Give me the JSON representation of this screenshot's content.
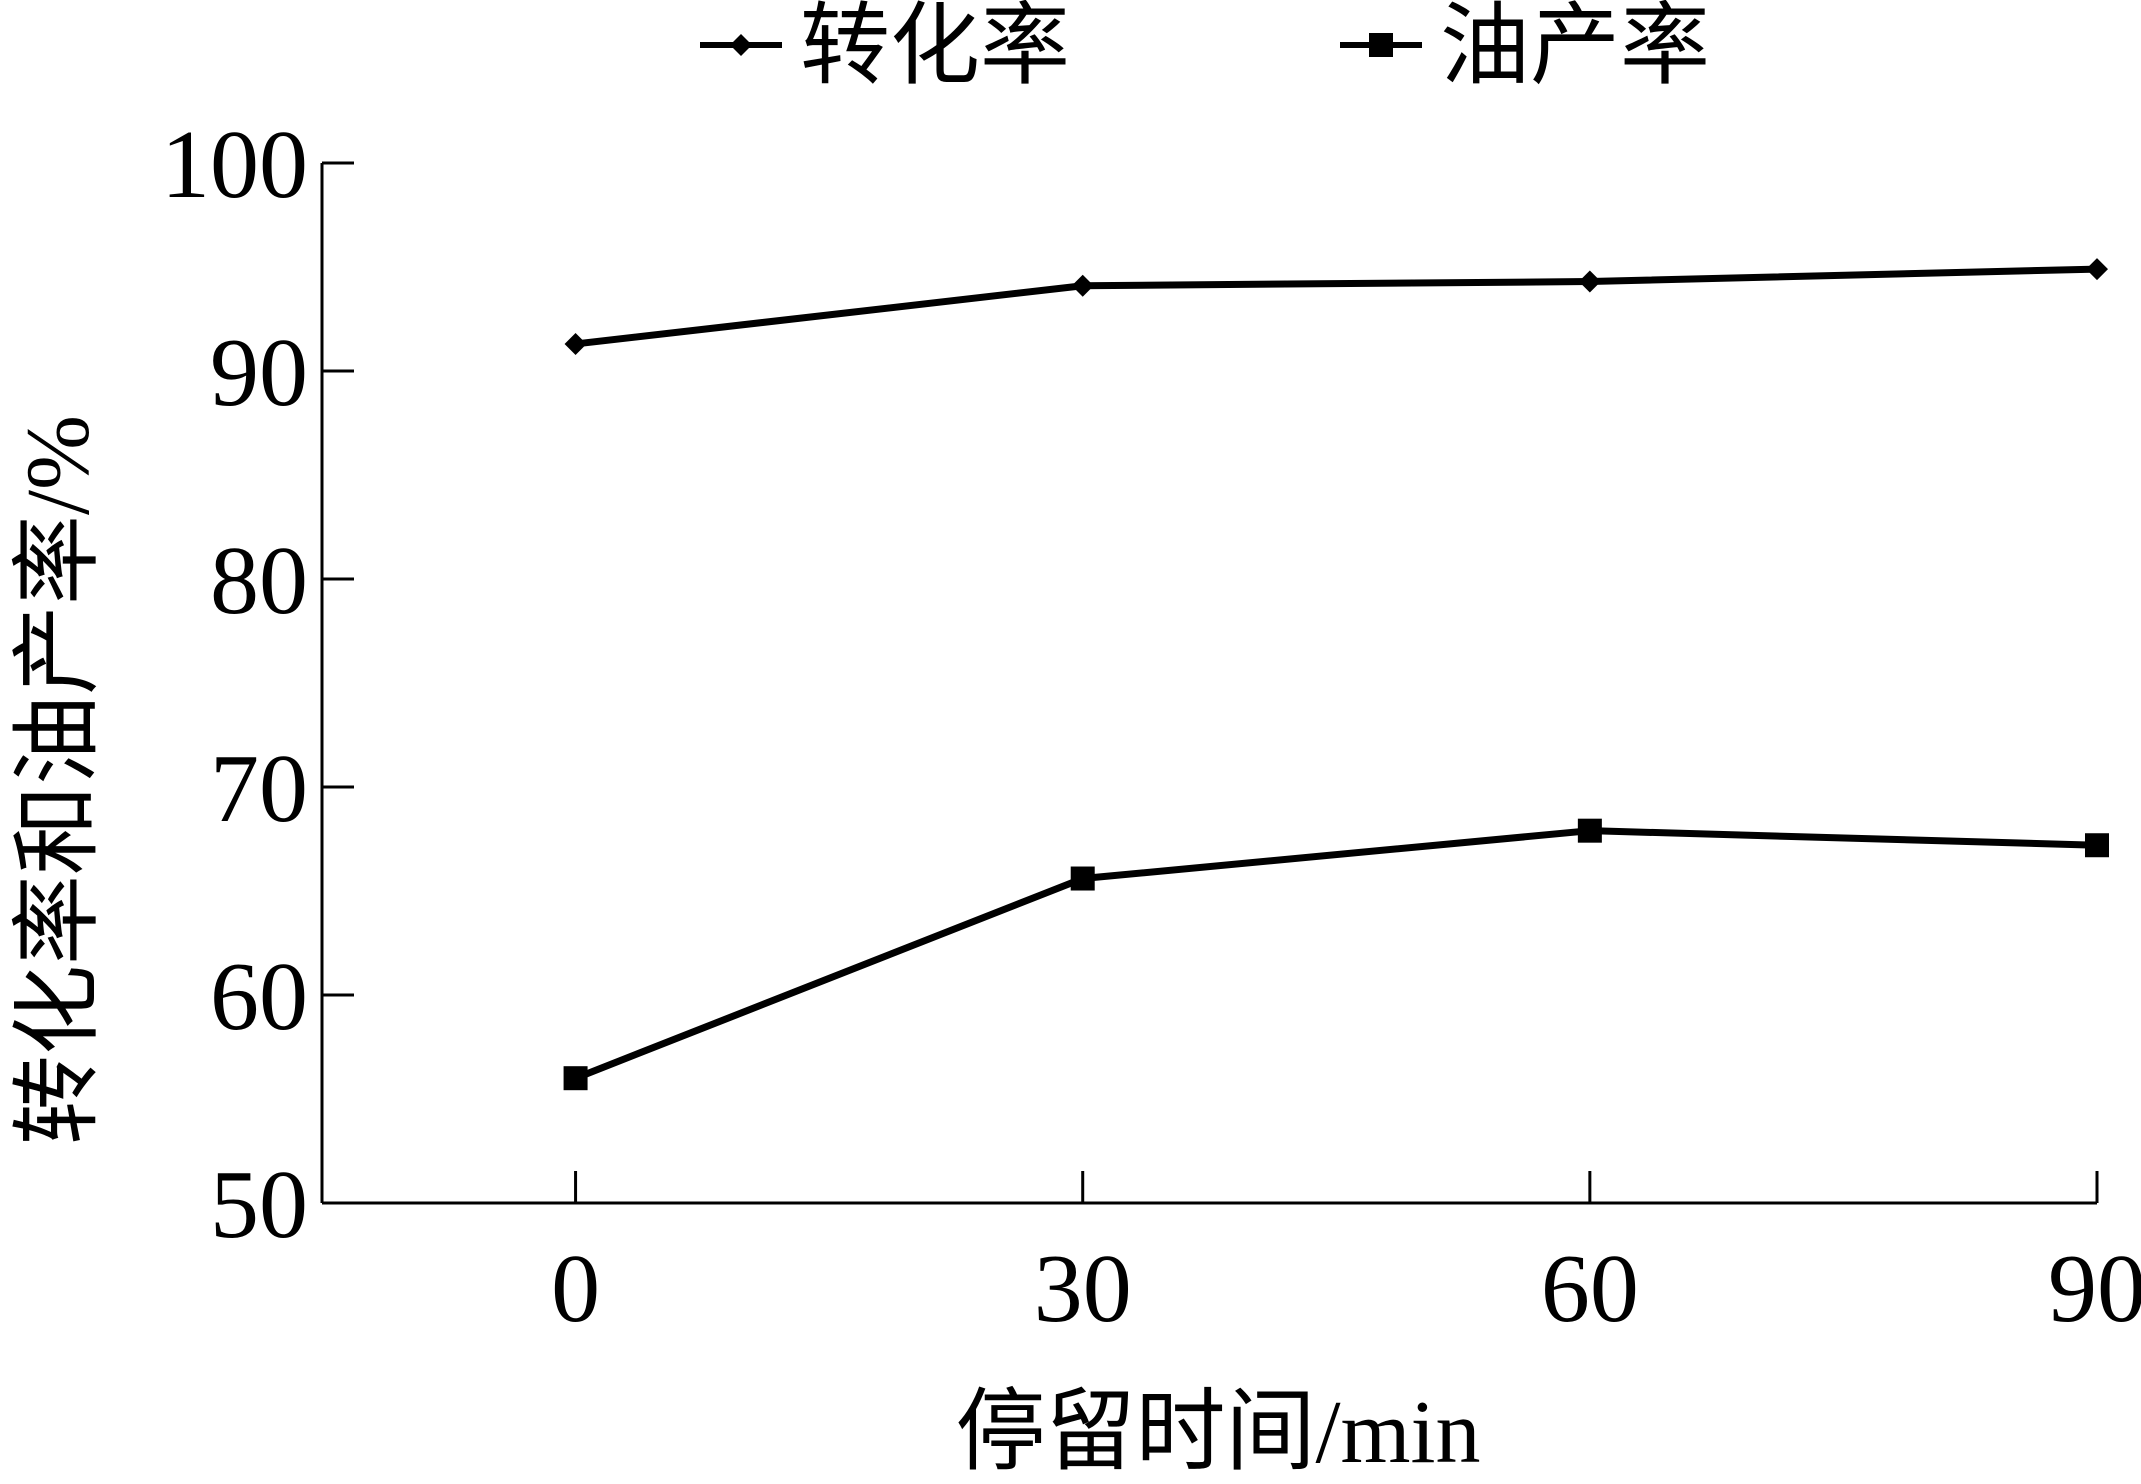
{
  "chart_data": {
    "type": "line",
    "title": "",
    "xlabel": "停留时间/min",
    "ylabel": "转化率和油产率/%",
    "x": [
      0,
      30,
      60,
      90
    ],
    "x_ticks": [
      "0",
      "30",
      "60",
      "90"
    ],
    "y_ticks": [
      "50",
      "60",
      "70",
      "80",
      "90",
      "100"
    ],
    "xlim": [
      -15,
      90
    ],
    "ylim": [
      50,
      100
    ],
    "grid": false,
    "legend_position": "top",
    "series": [
      {
        "name": "转化率",
        "marker": "diamond",
        "color": "#000000",
        "values": [
          91.3,
          94.1,
          94.3,
          94.9
        ]
      },
      {
        "name": "油产率",
        "marker": "square",
        "color": "#000000",
        "values": [
          56.0,
          65.6,
          67.9,
          67.2
        ]
      }
    ]
  }
}
